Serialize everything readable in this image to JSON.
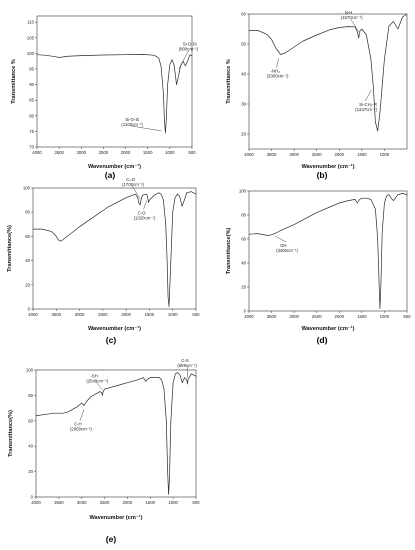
{
  "chart_data": [
    {
      "panel": "(a)",
      "type": "line",
      "xlabel": "Wavenumber (cm⁻¹)",
      "ylabel": "Transmittance %",
      "xlim": [
        4000,
        500
      ],
      "ylim": [
        70,
        112
      ],
      "xticks": [
        4000,
        3500,
        3000,
        2500,
        2000,
        1500,
        1000,
        500
      ],
      "yticks": [
        70,
        75,
        80,
        85,
        90,
        95,
        100,
        105,
        110
      ],
      "x": [
        4000,
        3800,
        3600,
        3500,
        3400,
        3300,
        3000,
        2500,
        2000,
        1600,
        1350,
        1250,
        1200,
        1150,
        1120,
        1100,
        1080,
        1050,
        1000,
        950,
        900,
        850,
        800,
        760,
        700,
        650,
        600,
        550,
        500
      ],
      "y": [
        99.6,
        99.4,
        99.0,
        98.7,
        98.9,
        99.1,
        99.3,
        99.5,
        99.6,
        99.7,
        99.4,
        98.5,
        96,
        88,
        78,
        74.5,
        79,
        90,
        96.5,
        98,
        96,
        90,
        93,
        96,
        97.5,
        96,
        97.5,
        99.5,
        99.3
      ],
      "annotations": [
        {
          "text": "Si-O-Si",
          "subtext": "(1100cm⁻¹)",
          "x": 1100,
          "y": 74.5
        },
        {
          "text": "Si-O-Si",
          "subtext": "(800cm⁻¹)",
          "x": 800,
          "y": 93
        }
      ]
    },
    {
      "panel": "(b)",
      "type": "line",
      "xlabel": "Wavenumber (cm⁻¹)",
      "ylabel": "Transmittance %",
      "xlim": [
        4000,
        500
      ],
      "ylim": [
        15,
        60
      ],
      "xticks": [
        4000,
        3500,
        3000,
        2500,
        2000,
        1500,
        1000
      ],
      "yticks": [
        20,
        30,
        40,
        50,
        60
      ],
      "x": [
        4000,
        3800,
        3600,
        3500,
        3450,
        3400,
        3300,
        3200,
        3000,
        2800,
        2500,
        2200,
        2000,
        1800,
        1650,
        1600,
        1570,
        1540,
        1500,
        1400,
        1300,
        1247,
        1200,
        1150,
        1100,
        1000,
        900,
        800,
        700,
        600,
        500
      ],
      "y": [
        54.5,
        54.5,
        53.2,
        51.5,
        50,
        48.5,
        46.5,
        47,
        49,
        51,
        53,
        54.8,
        55.5,
        55.8,
        55.7,
        54,
        52,
        54.5,
        55,
        53,
        45,
        36,
        24,
        21,
        27,
        45,
        56,
        57.5,
        55,
        59,
        60
      ],
      "annotations": [
        {
          "text": "-NH₂",
          "subtext": "(3300cm⁻¹)",
          "x": 3300,
          "y": 46.5
        },
        {
          "text": "N-H",
          "subtext": "(1570cm⁻¹)",
          "x": 1570,
          "y": 52
        },
        {
          "text": "Si-CH₂-R",
          "subtext": "(1247cm⁻¹)",
          "x": 1247,
          "y": 36
        }
      ]
    },
    {
      "panel": "(c)",
      "type": "line",
      "xlabel": "Wavenumber (cm⁻¹)",
      "ylabel": "Transmittance(%)",
      "xlim": [
        4000,
        500
      ],
      "ylim": [
        0,
        100
      ],
      "xticks": [
        4000,
        3500,
        3000,
        2500,
        2000,
        1500,
        1000,
        500
      ],
      "yticks": [
        0,
        20,
        40,
        60,
        80,
        100
      ],
      "x": [
        4000,
        3800,
        3600,
        3500,
        3450,
        3400,
        3300,
        3000,
        2700,
        2400,
        2000,
        1800,
        1750,
        1730,
        1700,
        1680,
        1650,
        1560,
        1540,
        1520,
        1500,
        1400,
        1300,
        1250,
        1200,
        1150,
        1120,
        1100,
        1080,
        1050,
        1000,
        950,
        900,
        850,
        800,
        750,
        700,
        600,
        500
      ],
      "y": [
        66,
        66,
        64,
        60,
        57,
        56,
        59,
        68,
        76,
        84,
        92,
        95,
        92,
        88,
        86,
        90,
        94,
        95,
        93,
        88,
        90,
        94,
        96,
        95,
        90,
        70,
        40,
        10,
        2,
        30,
        80,
        92,
        95,
        93,
        85,
        90,
        96,
        97,
        95
      ],
      "annotations": [
        {
          "text": "C=O",
          "subtext": "(1700cm⁻¹)",
          "x": 1700,
          "y": 86
        },
        {
          "text": "C-O",
          "subtext": "(1320cm⁻¹)",
          "x": 1540,
          "y": 93
        }
      ]
    },
    {
      "panel": "(d)",
      "type": "line",
      "xlabel": "Wavenumber (cm⁻¹)",
      "ylabel": "Transmittance(%)",
      "xlim": [
        4000,
        500
      ],
      "ylim": [
        0,
        100
      ],
      "xticks": [
        4000,
        3500,
        3000,
        2500,
        2000,
        1500,
        1000,
        500
      ],
      "yticks": [
        0,
        20,
        40,
        60,
        80,
        100
      ],
      "x": [
        4000,
        3800,
        3600,
        3500,
        3400,
        3300,
        3000,
        2500,
        2000,
        1800,
        1650,
        1600,
        1550,
        1500,
        1400,
        1300,
        1200,
        1150,
        1120,
        1100,
        1080,
        1050,
        1000,
        950,
        900,
        850,
        800,
        700,
        600,
        500
      ],
      "y": [
        64,
        64.5,
        63,
        63.5,
        65,
        67,
        72,
        82,
        90,
        92,
        93,
        90,
        93,
        94,
        94,
        93,
        85,
        60,
        25,
        2,
        20,
        65,
        90,
        96,
        97,
        94,
        92,
        97,
        98,
        97
      ],
      "annotations": [
        {
          "text": "OH",
          "subtext": "(3400cm⁻¹)",
          "x": 3400,
          "y": 65
        }
      ]
    },
    {
      "panel": "(e)",
      "type": "line",
      "xlabel": "Wavenumber (cm⁻¹)",
      "ylabel": "Transmittance(%)",
      "xlim": [
        4000,
        500
      ],
      "ylim": [
        0,
        100
      ],
      "xticks": [
        4000,
        3500,
        3000,
        2500,
        2000,
        1500,
        1000,
        500
      ],
      "yticks": [
        0,
        20,
        40,
        60,
        80,
        100
      ],
      "x": [
        4000,
        3800,
        3600,
        3400,
        3300,
        3100,
        3000,
        2950,
        2900,
        2800,
        2600,
        2560,
        2549,
        2530,
        2500,
        2200,
        2000,
        1800,
        1650,
        1600,
        1550,
        1500,
        1400,
        1300,
        1250,
        1200,
        1150,
        1120,
        1100,
        1080,
        1050,
        1000,
        950,
        900,
        850,
        800,
        750,
        700,
        689,
        670,
        600,
        550,
        500
      ],
      "y": [
        64,
        65,
        66,
        66,
        67,
        71,
        74,
        72,
        75,
        79,
        83,
        82,
        80,
        83,
        85,
        88,
        90,
        92,
        94,
        91,
        93,
        94,
        94,
        94,
        92,
        85,
        60,
        20,
        2,
        15,
        60,
        90,
        97,
        98,
        96,
        90,
        94,
        92,
        89,
        93,
        97,
        96,
        95
      ],
      "annotations": [
        {
          "text": "C-H",
          "subtext": "(2950cm⁻¹)",
          "x": 2950,
          "y": 72
        },
        {
          "text": "-SH",
          "subtext": "(2549cm⁻¹)",
          "x": 2549,
          "y": 80
        },
        {
          "text": "C-S",
          "subtext": "(689cm⁻¹)",
          "x": 689,
          "y": 89
        }
      ]
    }
  ]
}
